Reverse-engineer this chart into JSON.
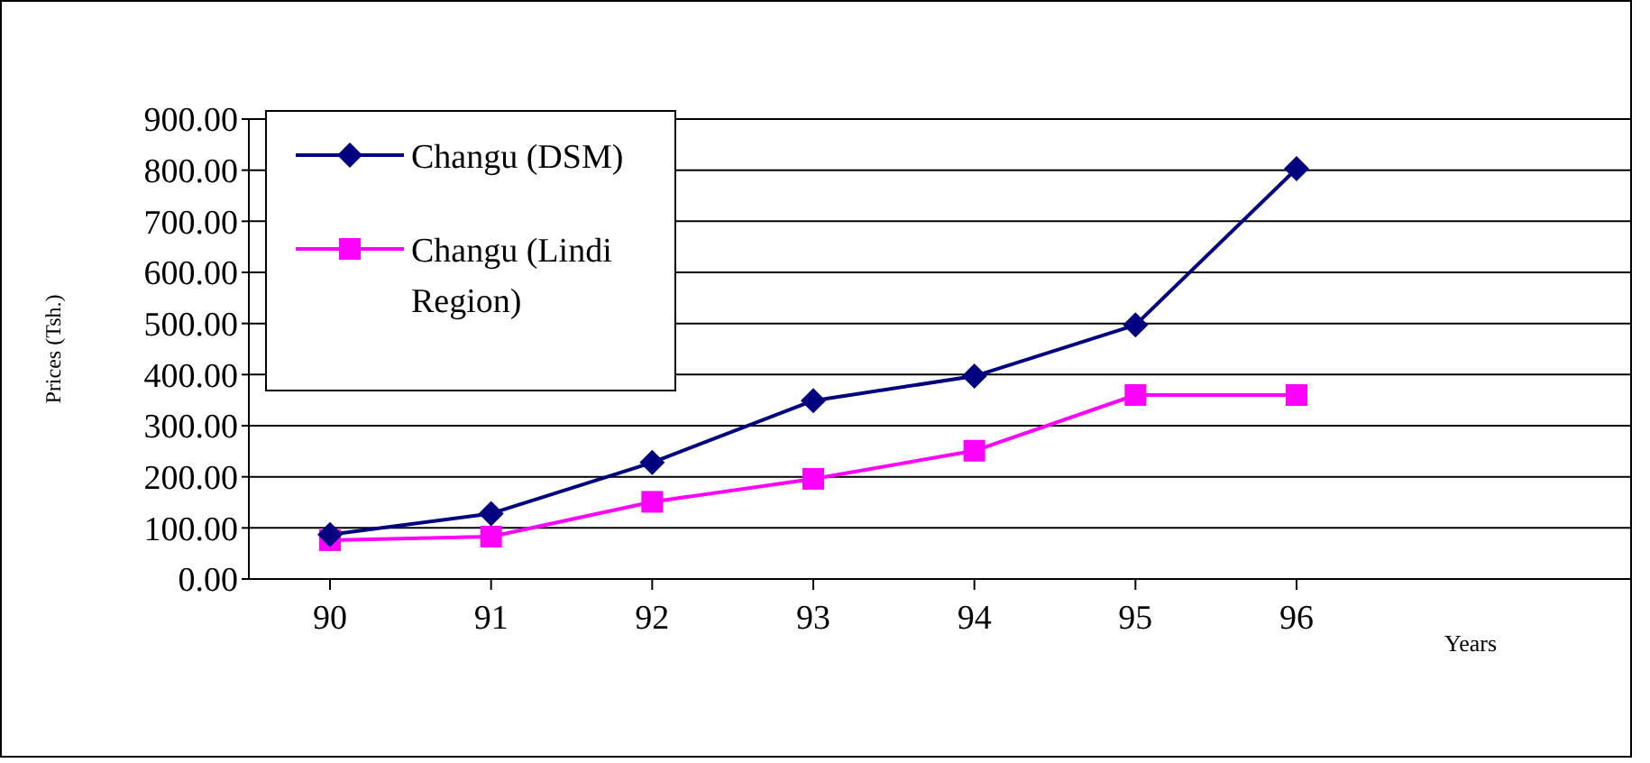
{
  "chart_data": {
    "type": "line",
    "categories": [
      "90",
      "91",
      "92",
      "93",
      "94",
      "95",
      "96"
    ],
    "series": [
      {
        "name": "Changu (DSM)",
        "color": "#000080",
        "values": [
          87,
          128,
          228,
          349,
          397,
          497,
          803
        ],
        "marker": "diamond"
      },
      {
        "name": "Changu (Lindi Region)",
        "color": "#ff00ff",
        "values": [
          76,
          83,
          151,
          196,
          251,
          360,
          360
        ],
        "marker": "square"
      }
    ],
    "ylim": [
      0,
      900
    ],
    "yticks": [
      {
        "value": 0,
        "label": "0.00"
      },
      {
        "value": 100,
        "label": "100.00"
      },
      {
        "value": 200,
        "label": "200.00"
      },
      {
        "value": 300,
        "label": "300.00"
      },
      {
        "value": 400,
        "label": "400.00"
      },
      {
        "value": 500,
        "label": "500.00"
      },
      {
        "value": 600,
        "label": "600.00"
      },
      {
        "value": 700,
        "label": "700.00"
      },
      {
        "value": 800,
        "label": "800.00"
      },
      {
        "value": 900,
        "label": "900.00"
      }
    ],
    "xlabel": "Years",
    "ylabel": "Prices (Tsh.)",
    "grid": "y",
    "legend": "top left",
    "line_style": "solid"
  }
}
